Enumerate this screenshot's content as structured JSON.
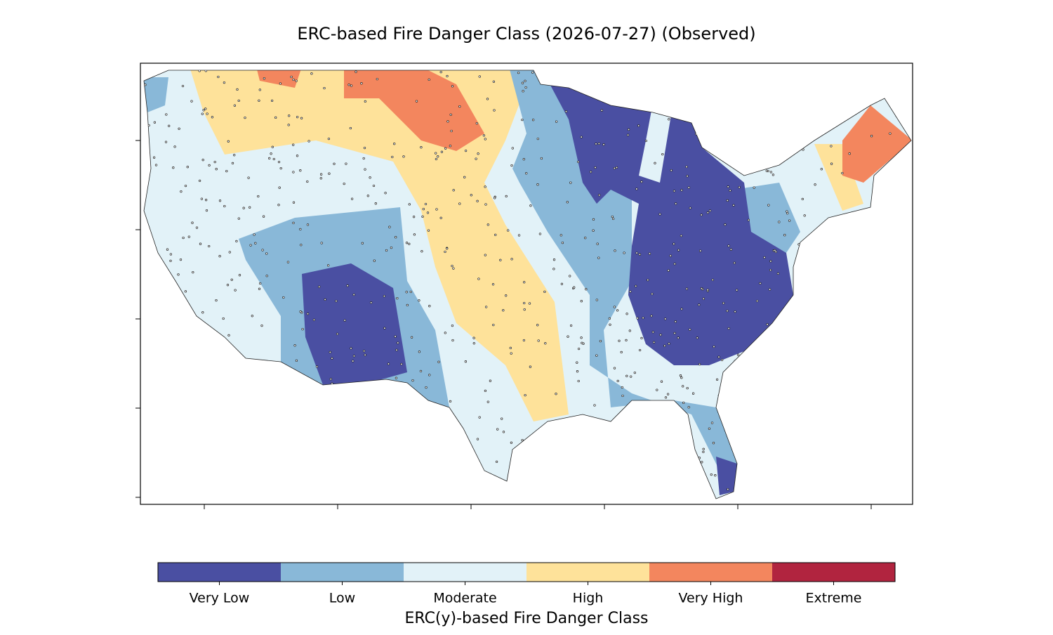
{
  "title": "ERC-based Fire Danger Class (2026-07-27) (Observed)",
  "colorbar": {
    "label": "ERC(y)-based Fire Danger Class",
    "classes": [
      {
        "name": "Very Low",
        "color": "#4a4fa2"
      },
      {
        "name": "Low",
        "color": "#89b8d8"
      },
      {
        "name": "Moderate",
        "color": "#e2f2f8"
      },
      {
        "name": "High",
        "color": "#fee29a"
      },
      {
        "name": "Very High",
        "color": "#f3865e"
      },
      {
        "name": "Extreme",
        "color": "#b1243f"
      }
    ]
  }
}
